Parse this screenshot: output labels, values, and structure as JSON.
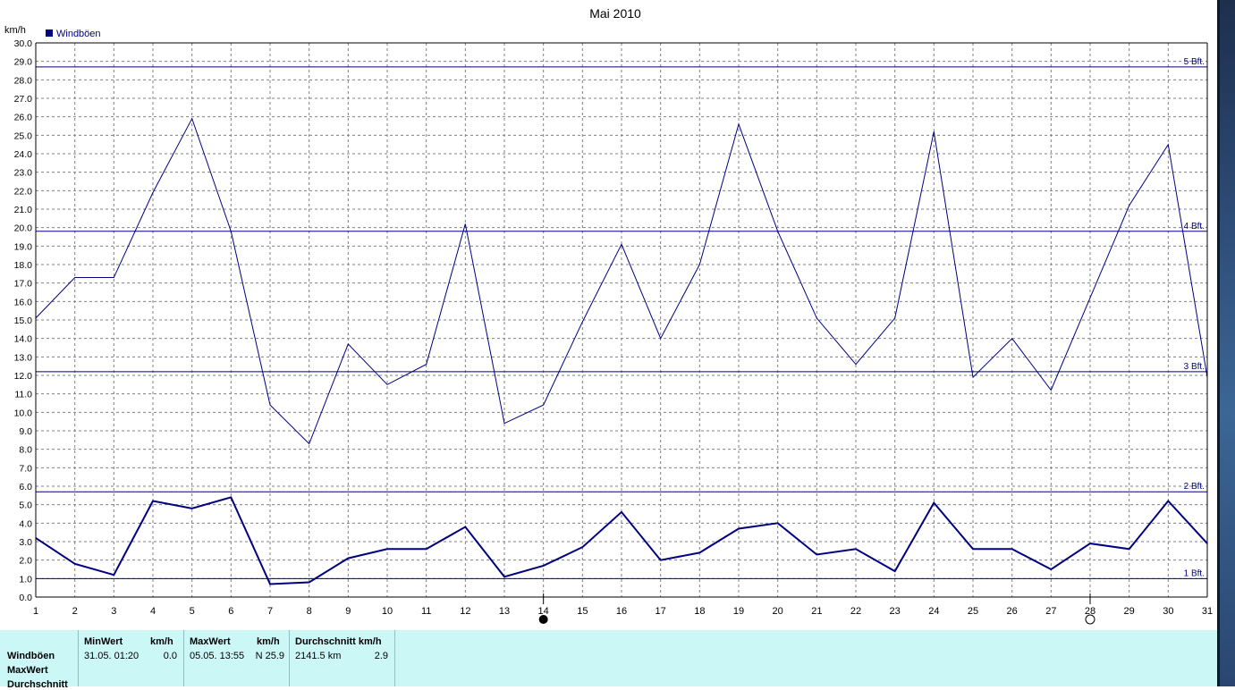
{
  "chart_data": {
    "type": "line",
    "title": "Mai 2010",
    "ylabel": "km/h",
    "xlabel": "",
    "ylim": [
      0,
      30
    ],
    "yticks": [
      "0.0",
      "1.0",
      "2.0",
      "3.0",
      "4.0",
      "5.0",
      "6.0",
      "7.0",
      "8.0",
      "9.0",
      "10.0",
      "11.0",
      "12.0",
      "13.0",
      "14.0",
      "15.0",
      "16.0",
      "17.0",
      "18.0",
      "19.0",
      "20.0",
      "21.0",
      "22.0",
      "23.0",
      "24.0",
      "25.0",
      "26.0",
      "27.0",
      "28.0",
      "29.0",
      "30.0"
    ],
    "x": [
      1,
      2,
      3,
      4,
      5,
      6,
      7,
      8,
      9,
      10,
      11,
      12,
      13,
      14,
      15,
      16,
      17,
      18,
      19,
      20,
      21,
      22,
      23,
      24,
      25,
      26,
      27,
      28,
      29,
      30,
      31
    ],
    "grid": true,
    "legend": "top-left",
    "series": [
      {
        "name": "Windböen",
        "color": "#000080",
        "values": [
          15.1,
          17.3,
          17.3,
          21.9,
          25.9,
          19.8,
          10.4,
          8.3,
          13.7,
          11.5,
          12.6,
          20.2,
          9.4,
          10.4,
          14.9,
          19.1,
          14.0,
          18.0,
          25.6,
          19.8,
          15.1,
          12.6,
          15.1,
          25.2,
          11.9,
          14.0,
          11.2,
          16.2,
          21.2,
          24.5,
          11.9
        ]
      },
      {
        "name": "",
        "color": "#000080",
        "values": [
          3.2,
          1.8,
          1.2,
          5.2,
          4.8,
          5.4,
          0.7,
          0.8,
          2.1,
          2.6,
          2.6,
          3.8,
          1.1,
          1.7,
          2.7,
          4.6,
          2.0,
          2.4,
          3.7,
          4.0,
          2.3,
          2.6,
          1.4,
          5.1,
          2.6,
          2.6,
          1.5,
          2.9,
          2.6,
          5.2,
          2.9
        ]
      }
    ],
    "reference_lines": [
      {
        "label": "1 Bft.",
        "value": 1.0
      },
      {
        "label": "2 Bft.",
        "value": 5.7
      },
      {
        "label": "3 Bft.",
        "value": 12.2
      },
      {
        "label": "4 Bft.",
        "value": 19.8
      },
      {
        "label": "5 Bft.",
        "value": 28.7
      }
    ],
    "moon_phases": [
      {
        "day": 14,
        "phase": "new-moon"
      },
      {
        "day": 28,
        "phase": "full-moon"
      }
    ]
  },
  "stats": {
    "row_labels": [
      "Windböen",
      "MaxWert",
      "Durchschnitt"
    ],
    "min": {
      "header": "MinWert",
      "unit": "km/h",
      "datetime": "31.05.  01:20",
      "value": "0.0"
    },
    "max": {
      "header": "MaxWert",
      "unit": "km/h",
      "datetime": "05.05.  13:55",
      "value": "N 25.9"
    },
    "avg": {
      "header": "Durchschnitt km/h",
      "distance": "2141.5 km",
      "value": "2.9"
    }
  },
  "colors": {
    "series": "#000080",
    "grid": "#808080",
    "stats_bg": "#ccf7f7"
  }
}
